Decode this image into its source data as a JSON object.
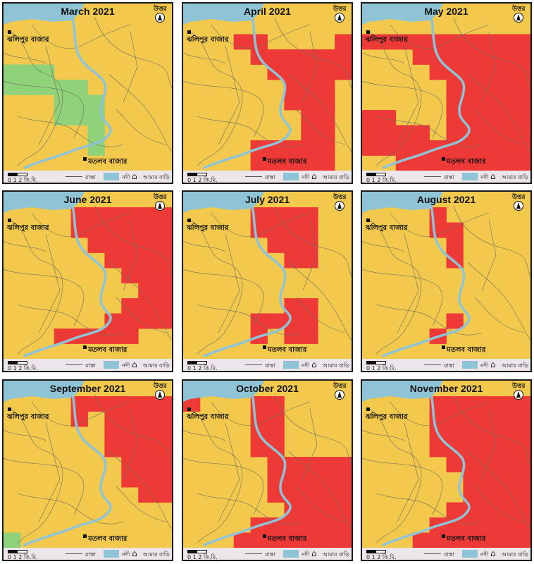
{
  "colors": {
    "high": "#ee3a37",
    "moderate": "#f2c94c",
    "low": "#8fd27a",
    "river": "#8fc4d6",
    "road": "#6d6d5d"
  },
  "labels": {
    "north": "উত্তর",
    "place_north": "ঝলিপুর বাজার",
    "place_south": "মতলব বাজার",
    "scale": "0  1  2 কি.মি.",
    "legend_road": "রাস্তা",
    "legend_river": "নদী",
    "legend_home": "আমার বাড়ি",
    "home_icon": "house-icon"
  },
  "grid_cols": 10,
  "grid_rows": 10,
  "panels": [
    {
      "title": "March 2021",
      "high": [],
      "low": [
        [
          3,
          0
        ],
        [
          4,
          0
        ],
        [
          3,
          1
        ],
        [
          4,
          1
        ],
        [
          3,
          2
        ],
        [
          4,
          2
        ],
        [
          4,
          3
        ],
        [
          5,
          3
        ],
        [
          6,
          3
        ],
        [
          4,
          4
        ],
        [
          5,
          4
        ],
        [
          6,
          4
        ],
        [
          5,
          5
        ],
        [
          6,
          5
        ],
        [
          7,
          5
        ],
        [
          8,
          5
        ]
      ]
    },
    {
      "title": "April 2021",
      "high": [
        [
          1,
          3
        ],
        [
          1,
          4
        ],
        [
          1,
          9
        ],
        [
          2,
          4
        ],
        [
          2,
          5
        ],
        [
          2,
          6
        ],
        [
          2,
          7
        ],
        [
          2,
          8
        ],
        [
          2,
          9
        ],
        [
          3,
          5
        ],
        [
          3,
          6
        ],
        [
          3,
          7
        ],
        [
          3,
          8
        ],
        [
          3,
          9
        ],
        [
          4,
          6
        ],
        [
          4,
          7
        ],
        [
          4,
          8
        ],
        [
          5,
          6
        ],
        [
          5,
          7
        ],
        [
          5,
          8
        ],
        [
          6,
          7
        ],
        [
          6,
          8
        ],
        [
          7,
          7
        ],
        [
          7,
          8
        ],
        [
          8,
          4
        ],
        [
          8,
          5
        ],
        [
          8,
          6
        ],
        [
          8,
          7
        ],
        [
          8,
          8
        ],
        [
          9,
          4
        ],
        [
          9,
          5
        ],
        [
          9,
          6
        ],
        [
          9,
          7
        ],
        [
          9,
          8
        ]
      ],
      "low": []
    },
    {
      "title": "May 2021",
      "high": [
        [
          1,
          0
        ],
        [
          1,
          1
        ],
        [
          1,
          2
        ],
        [
          1,
          3
        ],
        [
          1,
          4
        ],
        [
          1,
          5
        ],
        [
          1,
          6
        ],
        [
          1,
          7
        ],
        [
          1,
          8
        ],
        [
          1,
          9
        ],
        [
          2,
          3
        ],
        [
          2,
          4
        ],
        [
          2,
          5
        ],
        [
          2,
          6
        ],
        [
          2,
          7
        ],
        [
          2,
          8
        ],
        [
          2,
          9
        ],
        [
          3,
          4
        ],
        [
          3,
          5
        ],
        [
          3,
          6
        ],
        [
          3,
          7
        ],
        [
          3,
          8
        ],
        [
          3,
          9
        ],
        [
          4,
          5
        ],
        [
          4,
          6
        ],
        [
          4,
          7
        ],
        [
          4,
          8
        ],
        [
          4,
          9
        ],
        [
          5,
          5
        ],
        [
          5,
          6
        ],
        [
          5,
          7
        ],
        [
          5,
          8
        ],
        [
          5,
          9
        ],
        [
          6,
          0
        ],
        [
          6,
          1
        ],
        [
          6,
          5
        ],
        [
          6,
          6
        ],
        [
          6,
          7
        ],
        [
          6,
          8
        ],
        [
          6,
          9
        ],
        [
          7,
          0
        ],
        [
          7,
          1
        ],
        [
          7,
          2
        ],
        [
          7,
          3
        ],
        [
          7,
          5
        ],
        [
          7,
          6
        ],
        [
          7,
          7
        ],
        [
          7,
          8
        ],
        [
          7,
          9
        ],
        [
          8,
          0
        ],
        [
          8,
          1
        ],
        [
          8,
          2
        ],
        [
          8,
          3
        ],
        [
          8,
          4
        ],
        [
          8,
          5
        ],
        [
          8,
          6
        ],
        [
          8,
          7
        ],
        [
          8,
          8
        ],
        [
          8,
          9
        ],
        [
          9,
          2
        ],
        [
          9,
          3
        ],
        [
          9,
          4
        ],
        [
          9,
          5
        ],
        [
          9,
          6
        ],
        [
          9,
          7
        ],
        [
          9,
          8
        ],
        [
          9,
          9
        ]
      ],
      "low": []
    },
    {
      "title": "June 2021",
      "high": [
        [
          0,
          4
        ],
        [
          0,
          5
        ],
        [
          0,
          6
        ],
        [
          0,
          7
        ],
        [
          0,
          8
        ],
        [
          0,
          9
        ],
        [
          1,
          4
        ],
        [
          1,
          5
        ],
        [
          1,
          6
        ],
        [
          1,
          7
        ],
        [
          1,
          8
        ],
        [
          1,
          9
        ],
        [
          2,
          5
        ],
        [
          2,
          6
        ],
        [
          2,
          7
        ],
        [
          2,
          8
        ],
        [
          2,
          9
        ],
        [
          3,
          6
        ],
        [
          3,
          7
        ],
        [
          3,
          8
        ],
        [
          3,
          9
        ],
        [
          4,
          7
        ],
        [
          4,
          8
        ],
        [
          4,
          9
        ],
        [
          5,
          8
        ],
        [
          5,
          9
        ],
        [
          6,
          7
        ],
        [
          6,
          8
        ],
        [
          6,
          9
        ],
        [
          7,
          6
        ],
        [
          7,
          7
        ],
        [
          7,
          8
        ],
        [
          7,
          9
        ],
        [
          8,
          3
        ],
        [
          8,
          4
        ],
        [
          8,
          5
        ],
        [
          8,
          6
        ],
        [
          8,
          7
        ]
      ],
      "low": []
    },
    {
      "title": "July 2021",
      "high": [
        [
          0,
          4
        ],
        [
          0,
          5
        ],
        [
          0,
          6
        ],
        [
          0,
          7
        ],
        [
          1,
          4
        ],
        [
          1,
          5
        ],
        [
          1,
          6
        ],
        [
          1,
          7
        ],
        [
          2,
          5
        ],
        [
          2,
          6
        ],
        [
          2,
          7
        ],
        [
          3,
          6
        ],
        [
          3,
          7
        ],
        [
          6,
          6
        ],
        [
          6,
          7
        ],
        [
          7,
          4
        ],
        [
          7,
          5
        ],
        [
          7,
          6
        ],
        [
          7,
          7
        ],
        [
          8,
          4
        ],
        [
          8,
          6
        ],
        [
          8,
          7
        ]
      ],
      "low": []
    },
    {
      "title": "August 2021",
      "high": [
        [
          0,
          4
        ],
        [
          1,
          4
        ],
        [
          1,
          5
        ],
        [
          2,
          5
        ],
        [
          3,
          5
        ],
        [
          7,
          5
        ],
        [
          8,
          4
        ]
      ],
      "low": []
    },
    {
      "title": "September 2021",
      "high": [
        [
          0,
          4
        ],
        [
          0,
          5
        ],
        [
          0,
          6
        ],
        [
          0,
          7
        ],
        [
          0,
          8
        ],
        [
          0,
          9
        ],
        [
          1,
          4
        ],
        [
          1,
          6
        ],
        [
          1,
          7
        ],
        [
          1,
          8
        ],
        [
          1,
          9
        ],
        [
          2,
          6
        ],
        [
          2,
          7
        ],
        [
          2,
          8
        ],
        [
          2,
          9
        ],
        [
          3,
          6
        ],
        [
          3,
          7
        ],
        [
          3,
          8
        ],
        [
          3,
          9
        ],
        [
          4,
          7
        ],
        [
          4,
          8
        ],
        [
          4,
          9
        ],
        [
          5,
          7
        ],
        [
          5,
          8
        ],
        [
          5,
          9
        ],
        [
          6,
          8
        ],
        [
          6,
          9
        ]
      ],
      "low": [
        [
          9,
          0
        ]
      ]
    },
    {
      "title": "October 2021",
      "high": [
        [
          0,
          0
        ],
        [
          0,
          4
        ],
        [
          0,
          5
        ],
        [
          1,
          4
        ],
        [
          1,
          5
        ],
        [
          2,
          4
        ],
        [
          2,
          5
        ],
        [
          3,
          4
        ],
        [
          3,
          5
        ],
        [
          4,
          5
        ],
        [
          4,
          6
        ],
        [
          4,
          7
        ],
        [
          4,
          8
        ],
        [
          4,
          9
        ],
        [
          5,
          5
        ],
        [
          5,
          6
        ],
        [
          5,
          7
        ],
        [
          5,
          8
        ],
        [
          5,
          9
        ],
        [
          6,
          5
        ],
        [
          6,
          6
        ],
        [
          6,
          7
        ],
        [
          6,
          8
        ],
        [
          6,
          9
        ],
        [
          7,
          6
        ],
        [
          7,
          7
        ],
        [
          7,
          8
        ],
        [
          7,
          9
        ],
        [
          8,
          4
        ],
        [
          8,
          5
        ],
        [
          8,
          6
        ],
        [
          8,
          7
        ],
        [
          8,
          8
        ],
        [
          8,
          9
        ],
        [
          9,
          3
        ],
        [
          9,
          4
        ],
        [
          9,
          5
        ],
        [
          9,
          6
        ],
        [
          9,
          7
        ],
        [
          9,
          8
        ],
        [
          9,
          9
        ]
      ],
      "low": []
    },
    {
      "title": "November 2021",
      "high": [
        [
          0,
          4
        ],
        [
          0,
          5
        ],
        [
          0,
          6
        ],
        [
          0,
          7
        ],
        [
          0,
          8
        ],
        [
          0,
          9
        ],
        [
          1,
          4
        ],
        [
          1,
          5
        ],
        [
          1,
          6
        ],
        [
          1,
          7
        ],
        [
          1,
          8
        ],
        [
          1,
          9
        ],
        [
          2,
          4
        ],
        [
          2,
          5
        ],
        [
          2,
          6
        ],
        [
          2,
          7
        ],
        [
          2,
          8
        ],
        [
          2,
          9
        ],
        [
          3,
          4
        ],
        [
          3,
          5
        ],
        [
          3,
          6
        ],
        [
          3,
          7
        ],
        [
          3,
          8
        ],
        [
          3,
          9
        ],
        [
          4,
          5
        ],
        [
          4,
          6
        ],
        [
          4,
          7
        ],
        [
          4,
          8
        ],
        [
          4,
          9
        ],
        [
          5,
          6
        ],
        [
          5,
          7
        ],
        [
          5,
          8
        ],
        [
          5,
          9
        ],
        [
          6,
          6
        ],
        [
          6,
          7
        ],
        [
          6,
          8
        ],
        [
          6,
          9
        ],
        [
          7,
          5
        ],
        [
          7,
          6
        ],
        [
          7,
          7
        ],
        [
          7,
          8
        ],
        [
          7,
          9
        ],
        [
          8,
          4
        ],
        [
          8,
          5
        ],
        [
          8,
          6
        ],
        [
          8,
          7
        ],
        [
          8,
          8
        ],
        [
          8,
          9
        ],
        [
          9,
          3
        ],
        [
          9,
          4
        ],
        [
          9,
          5
        ],
        [
          9,
          6
        ],
        [
          9,
          7
        ],
        [
          9,
          8
        ],
        [
          9,
          9
        ]
      ],
      "low": []
    }
  ]
}
